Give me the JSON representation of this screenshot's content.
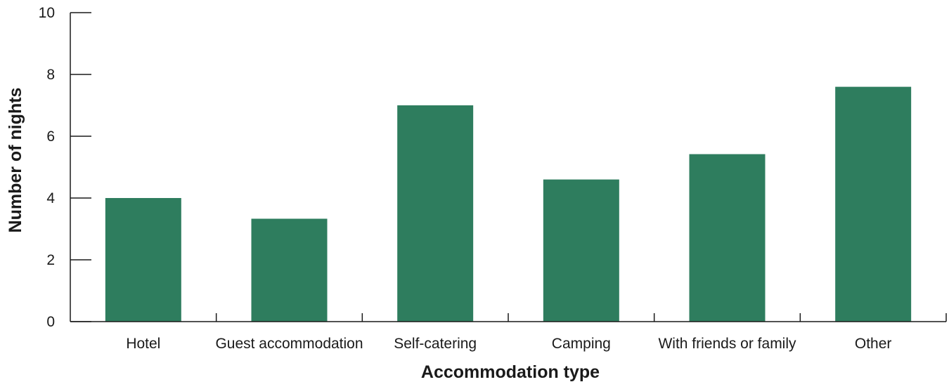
{
  "chart_data": {
    "type": "bar",
    "categories": [
      "Hotel",
      "Guest accommodation",
      "Self-catering",
      "Camping",
      "With friends or family",
      "Other"
    ],
    "values": [
      4.0,
      3.33,
      7.0,
      4.6,
      5.42,
      7.6
    ],
    "xlabel": "Accommodation type",
    "ylabel": "Number of nights",
    "ylim": [
      0,
      10
    ],
    "yticks": [
      "0",
      "2",
      "4",
      "6",
      "8",
      "10"
    ],
    "bar_color": "#2e7d5e",
    "grid": false
  }
}
